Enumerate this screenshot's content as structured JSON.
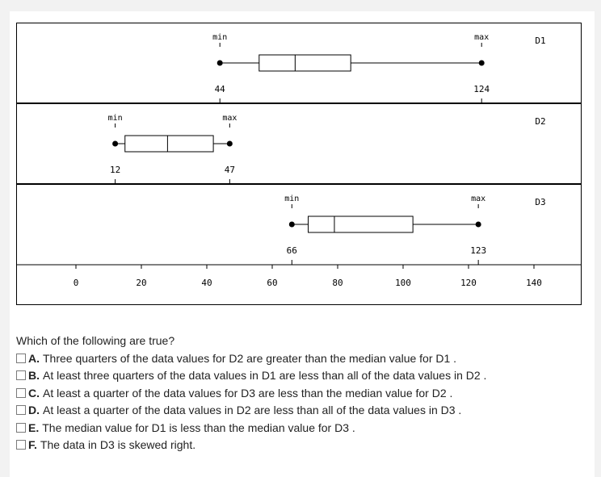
{
  "chart_data": {
    "type": "boxplot",
    "x_ticks": [
      0,
      20,
      40,
      60,
      80,
      100,
      120,
      140
    ],
    "xlim": [
      0,
      140
    ],
    "series": [
      {
        "name": "D1",
        "min": 44,
        "q1": 56,
        "median": 67,
        "q3": 84,
        "max": 124,
        "min_label": "min",
        "max_label": "max",
        "min_value_label": "44",
        "max_value_label": "124"
      },
      {
        "name": "D2",
        "min": 12,
        "q1": 15,
        "median": 28,
        "q3": 42,
        "max": 47,
        "min_label": "min",
        "max_label": "max",
        "min_value_label": "12",
        "max_value_label": "47"
      },
      {
        "name": "D3",
        "min": 66,
        "q1": 71,
        "median": 79,
        "q3": 103,
        "max": 123,
        "min_label": "min",
        "max_label": "max",
        "min_value_label": "66",
        "max_value_label": "123"
      }
    ]
  },
  "question": {
    "text": "Which of the following are true?",
    "options": [
      {
        "letter": "A.",
        "text": "Three quarters of the data values for D2 are greater than the median value for D1 ."
      },
      {
        "letter": "B.",
        "text": "At least three quarters of the data values in D1 are less than all of the data values in D2 ."
      },
      {
        "letter": "C.",
        "text": "At least a quarter of the data values for D3 are less than the median value for D2 ."
      },
      {
        "letter": "D.",
        "text": "At least a quarter of the data values in D2 are less than all of the data values in D3 ."
      },
      {
        "letter": "E.",
        "text": "The median value for D1 is less than the median value for D3 ."
      },
      {
        "letter": "F.",
        "text": "The data in D3 is skewed right."
      }
    ]
  }
}
